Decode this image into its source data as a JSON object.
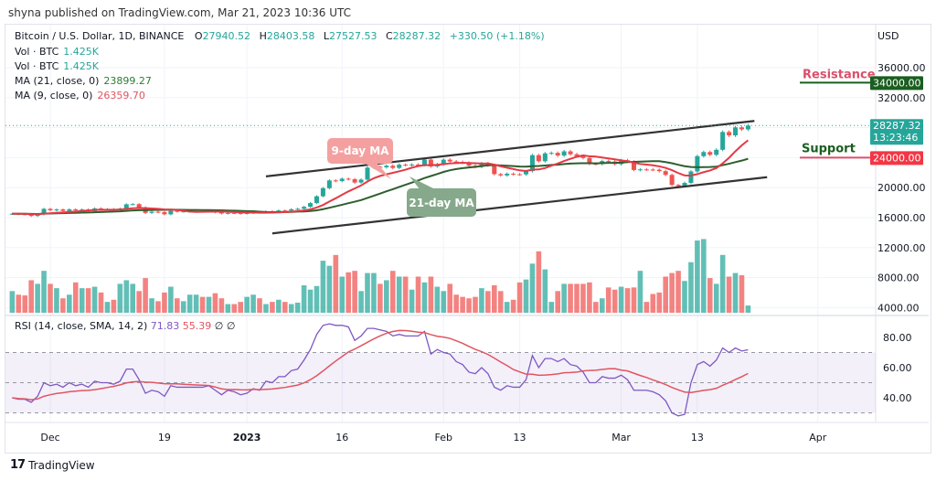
{
  "published": "shyna published on TradingView.com, Mar 21, 2023 10:36 UTC",
  "legend": {
    "symbol": "Bitcoin / U.S. Dollar, 1D, BINANCE",
    "open_label": "O",
    "open": "27940.52",
    "high_label": "H",
    "high": "28403.58",
    "low_label": "L",
    "low": "27527.53",
    "close_label": "C",
    "close": "28287.32",
    "change": "+330.50 (+1.18%)",
    "vol1_label": "Vol · BTC",
    "vol1": "1.425K",
    "vol2_label": "Vol · BTC",
    "vol2": "1.425K",
    "ma21_label": "MA (21, close, 0)",
    "ma21": "23899.27",
    "ma9_label": "MA (9, close, 0)",
    "ma9": "26359.70",
    "rsi_label": "RSI (14, close, SMA, 14, 2)",
    "rsi": "71.83",
    "rsi_sma": "55.39",
    "rsi_extra": "∅ ∅"
  },
  "price_axis": {
    "currency": "USD",
    "ticks": [
      "36000.00",
      "32000.00",
      "20000.00",
      "16000.00",
      "12000.00",
      "8000.00",
      "4000.00"
    ],
    "resistance_box": "34000.00",
    "last_price_box": "28287.32",
    "countdown": "13:23:46",
    "support_box": "24000.00"
  },
  "rsi_axis": {
    "ticks": [
      "80.00",
      "60.00",
      "40.00"
    ]
  },
  "date_axis": {
    "ticks": [
      "Dec",
      "19",
      "2023",
      "16",
      "Feb",
      "13",
      "Mar",
      "13",
      "Apr"
    ]
  },
  "annotations": {
    "resistance": "Resistance",
    "support": "Support",
    "ma9_callout": "9-day MA",
    "ma21_callout": "21-day MA"
  },
  "footer": {
    "brand": "TradingView"
  },
  "colors": {
    "up": "#26a69a",
    "down": "#ef5350",
    "ma9": "#e53945",
    "ma21": "#2e5e2e",
    "rsi": "#7e57c2",
    "rsi_sma": "#e05561",
    "resistance_box": "#1b5e20",
    "support_box": "#f23645"
  },
  "chart_data": {
    "type": "candlestick",
    "start_date": "2022-11-25",
    "end_date": "2023-03-21",
    "close": [
      16520,
      16460,
      16440,
      16220,
      16440,
      17170,
      16980,
      17090,
      16890,
      17110,
      16970,
      17090,
      16840,
      17230,
      17130,
      17130,
      17090,
      17210,
      17780,
      17800,
      17360,
      16630,
      16780,
      16740,
      16440,
      16900,
      16820,
      16830,
      16830,
      16840,
      16830,
      16920,
      16710,
      16550,
      16630,
      16600,
      16540,
      16620,
      16680,
      16670,
      16850,
      16830,
      16950,
      16940,
      17120,
      17180,
      17440,
      17940,
      18850,
      19930,
      20960,
      20880,
      21190,
      21130,
      20680,
      21070,
      22670,
      22780,
      22710,
      22920,
      22630,
      23060,
      23010,
      23080,
      23030,
      23740,
      22830,
      23130,
      23730,
      23490,
      23430,
      23330,
      22930,
      22760,
      23260,
      22960,
      21800,
      21630,
      21860,
      21780,
      21770,
      22200,
      24330,
      23520,
      24570,
      24630,
      24280,
      24840,
      24450,
      24190,
      23950,
      23180,
      23150,
      23550,
      23490,
      23140,
      23650,
      23470,
      22350,
      22430,
      22410,
      22390,
      22200,
      21700,
      20360,
      20190,
      20630,
      22160,
      24200,
      24750,
      24380,
      25050,
      27420,
      26970,
      28040,
      27770,
      28287.32
    ],
    "volume_relative": [
      30,
      25,
      24,
      45,
      40,
      58,
      40,
      34,
      20,
      25,
      42,
      34,
      34,
      36,
      28,
      15,
      18,
      40,
      45,
      40,
      30,
      48,
      20,
      16,
      28,
      36,
      20,
      16,
      25,
      25,
      22,
      22,
      27,
      20,
      12,
      12,
      15,
      22,
      25,
      20,
      12,
      15,
      18,
      15,
      12,
      14,
      38,
      32,
      37,
      72,
      65,
      80,
      50,
      56,
      58,
      30,
      55,
      55,
      40,
      45,
      58,
      50,
      50,
      32,
      50,
      42,
      50,
      36,
      30,
      40,
      25,
      22,
      20,
      22,
      34,
      30,
      38,
      30,
      15,
      18,
      42,
      46,
      68,
      85,
      60,
      15,
      30,
      40,
      40,
      40,
      40,
      42,
      15,
      20,
      35,
      32,
      36,
      34,
      35,
      58,
      15,
      26,
      28,
      50,
      55,
      58,
      44,
      70,
      100,
      102,
      48,
      40,
      80,
      50,
      55,
      52,
      10
    ],
    "rsi": [
      40,
      39,
      39,
      37,
      41,
      50,
      48,
      49,
      47,
      50,
      48,
      49,
      47,
      51,
      50,
      50,
      49,
      51,
      59,
      59,
      52,
      43,
      45,
      44,
      41,
      48,
      47,
      47,
      47,
      47,
      47,
      48,
      45,
      42,
      45,
      44,
      42,
      43,
      46,
      45,
      51,
      50,
      54,
      54,
      58,
      59,
      65,
      72,
      82,
      88,
      89,
      88,
      88,
      87,
      78,
      81,
      86,
      86,
      85,
      84,
      81,
      82,
      81,
      81,
      81,
      84,
      69,
      72,
      70,
      69,
      64,
      62,
      57,
      56,
      60,
      56,
      47,
      45,
      48,
      47,
      47,
      52,
      68,
      60,
      66,
      66,
      64,
      66,
      62,
      61,
      57,
      50,
      50,
      54,
      53,
      53,
      55,
      52,
      45,
      45,
      45,
      44,
      42,
      38,
      30,
      28,
      29,
      50,
      62,
      64,
      61,
      65,
      73,
      70,
      73,
      71,
      71.83
    ],
    "ma_periods": [
      9,
      21
    ],
    "rsi_bands": [
      30,
      50,
      70
    ],
    "trendlines": [
      {
        "name": "channel-upper",
        "from": [
          "2023-01-04",
          21500
        ],
        "to": [
          "2023-03-22",
          28900
        ]
      },
      {
        "name": "channel-lower",
        "from": [
          "2023-01-05",
          13900
        ],
        "to": [
          "2023-03-24",
          21400
        ]
      }
    ],
    "levels": {
      "resistance": 34000,
      "support": 24000
    },
    "price_range": [
      4000,
      36000
    ],
    "rsi_range": [
      20,
      100
    ]
  }
}
